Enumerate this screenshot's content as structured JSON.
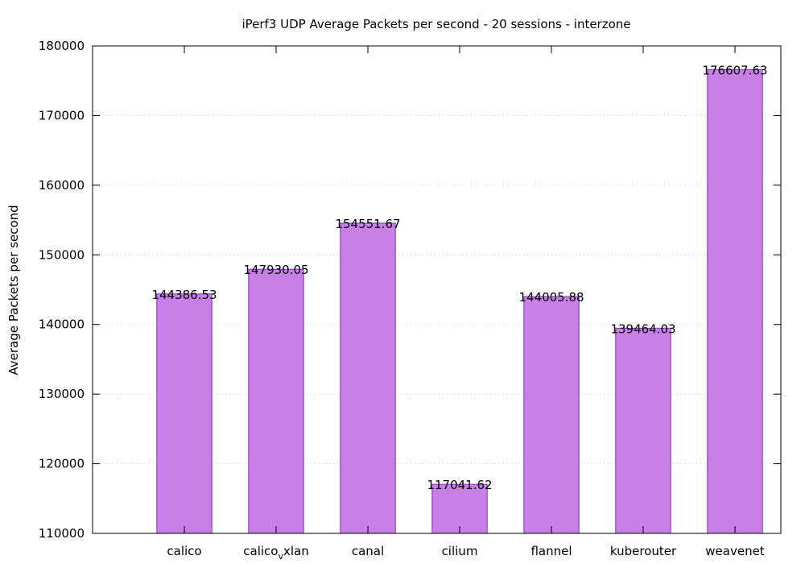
{
  "chart_data": {
    "type": "bar",
    "title": "iPerf3 UDP Average Packets per second - 20 sessions - interzone",
    "xlabel": "",
    "ylabel": "Average Packets per second",
    "categories": [
      "calico",
      "calico_vxlan",
      "canal",
      "cilium",
      "flannel",
      "kuberouter",
      "weavenet"
    ],
    "category_display": [
      {
        "main": "calico",
        "sub": "",
        "rest": ""
      },
      {
        "main": "calico",
        "sub": "v",
        "rest": "xlan"
      },
      {
        "main": "canal",
        "sub": "",
        "rest": ""
      },
      {
        "main": "cilium",
        "sub": "",
        "rest": ""
      },
      {
        "main": "flannel",
        "sub": "",
        "rest": ""
      },
      {
        "main": "kuberouter",
        "sub": "",
        "rest": ""
      },
      {
        "main": "weavenet",
        "sub": "",
        "rest": ""
      }
    ],
    "values": [
      144386.53,
      147930.05,
      154551.67,
      117041.62,
      144005.88,
      139464.03,
      176607.63
    ],
    "value_labels": [
      "144386.53",
      "147930.05",
      "154551.67",
      "117041.62",
      "144005.88",
      "139464.03",
      "176607.63"
    ],
    "ylim": [
      110000,
      180000
    ],
    "yticks": [
      110000,
      120000,
      130000,
      140000,
      150000,
      160000,
      170000,
      180000
    ],
    "ytick_labels": [
      "110000",
      "120000",
      "130000",
      "140000",
      "150000",
      "160000",
      "170000",
      "180000"
    ],
    "grid": true,
    "legend": "none",
    "colors": {
      "bar_fill": "#c880e8",
      "bar_edge": "#8a2bbf",
      "grid": "#c8c8c8"
    }
  }
}
